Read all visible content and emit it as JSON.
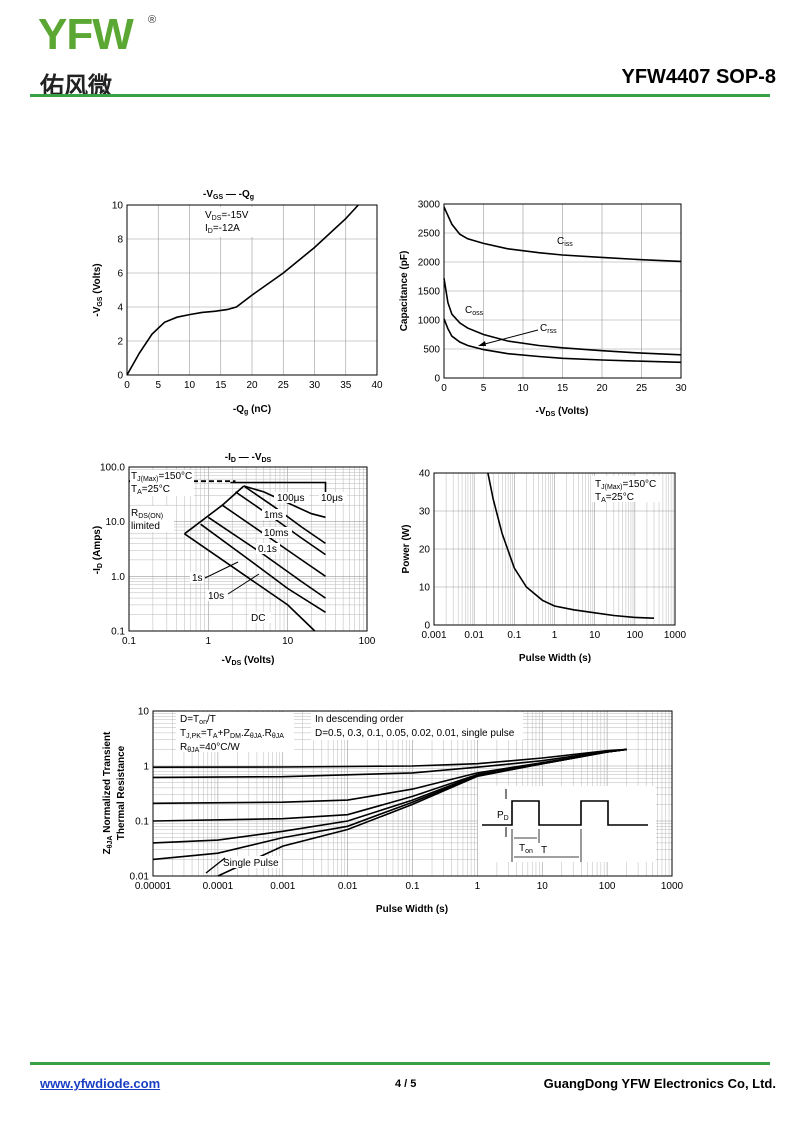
{
  "header": {
    "logo_text": "YFW",
    "logo_reg": "®",
    "logo_chinese": "佑风微",
    "part_title": "YFW4407  SOP-8"
  },
  "footer": {
    "website": "www.yfwdiode.com",
    "page": "4 / 5",
    "company": "GuangDong YFW Electronics Co, Ltd."
  },
  "colors": {
    "brand_green": "#3aa047",
    "link_blue": "#1a3fc4"
  },
  "chart_data": [
    {
      "type": "line",
      "title": "-VGS  —  -Qg",
      "xlabel": "-Qg (nC)",
      "ylabel": "-VGS (Volts)",
      "xlim": [
        0,
        40
      ],
      "ylim": [
        0,
        10
      ],
      "xticks": [
        "0",
        "5",
        "10",
        "15",
        "20",
        "25",
        "30",
        "35",
        "40"
      ],
      "yticks": [
        "0",
        "2",
        "4",
        "6",
        "8",
        "10"
      ],
      "annotations": [
        "VDS=-15V",
        "ID=-12A"
      ],
      "series": [
        {
          "points": [
            [
              0,
              0
            ],
            [
              2,
              1.3
            ],
            [
              4,
              2.4
            ],
            [
              6,
              3.1
            ],
            [
              8,
              3.4
            ],
            [
              10,
              3.55
            ],
            [
              12,
              3.68
            ],
            [
              14,
              3.75
            ],
            [
              16,
              3.85
            ],
            [
              17.5,
              4.0
            ],
            [
              20,
              4.7
            ],
            [
              25,
              6.0
            ],
            [
              30,
              7.5
            ],
            [
              35,
              9.2
            ],
            [
              37,
              10.0
            ]
          ]
        }
      ]
    },
    {
      "type": "line",
      "xlabel": "-VDS (Volts)",
      "ylabel": "Capacitance (pF)",
      "xlim": [
        0,
        30
      ],
      "ylim": [
        0,
        3000
      ],
      "xticks": [
        "0",
        "5",
        "10",
        "15",
        "20",
        "25",
        "30"
      ],
      "yticks": [
        "0",
        "500",
        "1000",
        "1500",
        "2000",
        "2500",
        "3000"
      ],
      "series": [
        {
          "name": "Ciss",
          "points": [
            [
              0,
              2950
            ],
            [
              1,
              2650
            ],
            [
              2,
              2480
            ],
            [
              3,
              2400
            ],
            [
              5,
              2320
            ],
            [
              8,
              2230
            ],
            [
              12,
              2160
            ],
            [
              15,
              2120
            ],
            [
              20,
              2080
            ],
            [
              25,
              2040
            ],
            [
              30,
              2010
            ]
          ]
        },
        {
          "name": "Coss",
          "points": [
            [
              0,
              1720
            ],
            [
              0.5,
              1300
            ],
            [
              1,
              1100
            ],
            [
              2,
              950
            ],
            [
              3,
              860
            ],
            [
              5,
              750
            ],
            [
              8,
              640
            ],
            [
              12,
              560
            ],
            [
              15,
              520
            ],
            [
              20,
              470
            ],
            [
              25,
              430
            ],
            [
              30,
              400
            ]
          ]
        },
        {
          "name": "Crss",
          "points": [
            [
              0,
              1020
            ],
            [
              0.5,
              850
            ],
            [
              1,
              720
            ],
            [
              2,
              620
            ],
            [
              3,
              560
            ],
            [
              5,
              490
            ],
            [
              8,
              420
            ],
            [
              12,
              370
            ],
            [
              15,
              340
            ],
            [
              20,
              310
            ],
            [
              25,
              290
            ],
            [
              30,
              270
            ]
          ]
        }
      ]
    },
    {
      "type": "line",
      "title": "-ID  —  -VDS",
      "xlabel": "-VDS (Volts)",
      "ylabel": "-ID (Amps)",
      "xscale": "log",
      "yscale": "log",
      "xlim": [
        0.1,
        100
      ],
      "ylim": [
        0.1,
        100
      ],
      "xticks": [
        "0.1",
        "1",
        "10",
        "100"
      ],
      "yticks": [
        "0.1",
        "1.0",
        "10.0",
        "100.0"
      ],
      "annotations": [
        "TJ(Max)=150°C",
        "TA=25°C",
        "RDS(ON) limited",
        "100μs",
        "10μs",
        "1ms",
        "10ms",
        "0.1s",
        "1s",
        "10s",
        "DC"
      ],
      "series": [
        {
          "name": "RDS(ON) limit",
          "points": [
            [
              0.5,
              6
            ],
            [
              1.5,
              20
            ],
            [
              2.8,
              45
            ]
          ]
        },
        {
          "name": "10μs",
          "points": [
            [
              1.9,
              52
            ],
            [
              30,
              52
            ],
            [
              30,
              30
            ]
          ]
        },
        {
          "name": "100μs",
          "points": [
            [
              2.8,
              45
            ],
            [
              5,
              35
            ],
            [
              10,
              22
            ],
            [
              20,
              14
            ],
            [
              30,
              12
            ]
          ]
        },
        {
          "name": "1ms",
          "points": [
            [
              2.8,
              45
            ],
            [
              7,
              18
            ],
            [
              15,
              8
            ],
            [
              30,
              4
            ]
          ]
        },
        {
          "name": "10ms",
          "points": [
            [
              2.2,
              35
            ],
            [
              7,
              11
            ],
            [
              15,
              5
            ],
            [
              30,
              2.5
            ]
          ]
        },
        {
          "name": "0.1s",
          "points": [
            [
              1.5,
              20
            ],
            [
              6,
              5
            ],
            [
              15,
              2
            ],
            [
              30,
              1
            ]
          ]
        },
        {
          "name": "1s",
          "points": [
            [
              1.0,
              12
            ],
            [
              5,
              2.5
            ],
            [
              15,
              0.8
            ],
            [
              30,
              0.4
            ]
          ]
        },
        {
          "name": "10s",
          "points": [
            [
              0.8,
              9
            ],
            [
              3,
              2.2
            ],
            [
              10,
              0.6
            ],
            [
              30,
              0.22
            ]
          ]
        },
        {
          "name": "DC",
          "points": [
            [
              0.5,
              6
            ],
            [
              3,
              1.0
            ],
            [
              10,
              0.3
            ],
            [
              22,
              0.1
            ]
          ]
        }
      ]
    },
    {
      "type": "line",
      "xlabel": "Pulse Width (s)",
      "ylabel": "Power (W)",
      "xscale": "log",
      "xlim": [
        0.001,
        1000
      ],
      "ylim": [
        0,
        40
      ],
      "xticks": [
        "0.001",
        "0.01",
        "0.1",
        "1",
        "10",
        "100",
        "1000"
      ],
      "yticks": [
        "0",
        "10",
        "20",
        "30",
        "40"
      ],
      "annotations": [
        "TJ(Max)=150°C",
        "TA=25°C"
      ],
      "series": [
        {
          "points": [
            [
              0.022,
              40
            ],
            [
              0.03,
              33
            ],
            [
              0.05,
              24
            ],
            [
              0.1,
              15
            ],
            [
              0.2,
              10
            ],
            [
              0.5,
              6.5
            ],
            [
              1,
              5
            ],
            [
              3,
              4
            ],
            [
              10,
              3.2
            ],
            [
              30,
              2.5
            ],
            [
              100,
              2.0
            ],
            [
              300,
              1.8
            ]
          ]
        }
      ]
    },
    {
      "type": "line",
      "xlabel": "Pulse Width (s)",
      "ylabel": "ZθJA Normalized Transient Thermal Resistance",
      "xscale": "log",
      "yscale": "log",
      "xlim": [
        1e-05,
        1000
      ],
      "ylim": [
        0.01,
        10
      ],
      "xticks": [
        "0.00001",
        "0.0001",
        "0.001",
        "0.01",
        "0.1",
        "1",
        "10",
        "100",
        "1000"
      ],
      "yticks": [
        "0.01",
        "0.1",
        "1",
        "10"
      ],
      "annotations": [
        "D=Ton/T",
        "TJ,PK=TA+PDM.ZθJA.RθJA",
        "RθJA=40°C/W",
        "In descending order",
        "D=0.5, 0.3, 0.1, 0.05, 0.02, 0.01, single pulse",
        "PD",
        "Ton",
        "T",
        "Single Pulse"
      ],
      "series": [
        {
          "name": "D=0.5",
          "points": [
            [
              1e-05,
              0.95
            ],
            [
              0.001,
              0.96
            ],
            [
              0.1,
              1.0
            ],
            [
              1,
              1.1
            ],
            [
              10,
              1.4
            ],
            [
              100,
              1.9
            ],
            [
              200,
              2.0
            ]
          ]
        },
        {
          "name": "D=0.3",
          "points": [
            [
              1e-05,
              0.62
            ],
            [
              0.001,
              0.64
            ],
            [
              0.1,
              0.75
            ],
            [
              1,
              0.95
            ],
            [
              10,
              1.25
            ],
            [
              100,
              1.85
            ],
            [
              200,
              2.0
            ]
          ]
        },
        {
          "name": "D=0.1",
          "points": [
            [
              1e-05,
              0.21
            ],
            [
              0.001,
              0.22
            ],
            [
              0.01,
              0.24
            ],
            [
              0.1,
              0.38
            ],
            [
              1,
              0.75
            ],
            [
              10,
              1.15
            ],
            [
              100,
              1.8
            ],
            [
              200,
              2.0
            ]
          ]
        },
        {
          "name": "D=0.05",
          "points": [
            [
              1e-05,
              0.1
            ],
            [
              0.001,
              0.11
            ],
            [
              0.01,
              0.13
            ],
            [
              0.1,
              0.28
            ],
            [
              1,
              0.7
            ],
            [
              10,
              1.1
            ],
            [
              100,
              1.8
            ],
            [
              200,
              2.0
            ]
          ]
        },
        {
          "name": "D=0.02",
          "points": [
            [
              1e-05,
              0.04
            ],
            [
              0.0001,
              0.045
            ],
            [
              0.001,
              0.065
            ],
            [
              0.01,
              0.1
            ],
            [
              0.1,
              0.24
            ],
            [
              1,
              0.68
            ],
            [
              10,
              1.1
            ],
            [
              100,
              1.8
            ],
            [
              200,
              2.0
            ]
          ]
        },
        {
          "name": "D=0.01",
          "points": [
            [
              1e-05,
              0.02
            ],
            [
              0.0001,
              0.026
            ],
            [
              0.001,
              0.05
            ],
            [
              0.01,
              0.08
            ],
            [
              0.1,
              0.22
            ],
            [
              1,
              0.66
            ],
            [
              10,
              1.1
            ],
            [
              100,
              1.8
            ],
            [
              200,
              2.0
            ]
          ]
        },
        {
          "name": "single pulse",
          "points": [
            [
              0.0001,
              0.01
            ],
            [
              0.001,
              0.035
            ],
            [
              0.01,
              0.07
            ],
            [
              0.1,
              0.2
            ],
            [
              1,
              0.65
            ],
            [
              10,
              1.1
            ],
            [
              100,
              1.8
            ],
            [
              200,
              2.0
            ]
          ]
        }
      ]
    }
  ]
}
